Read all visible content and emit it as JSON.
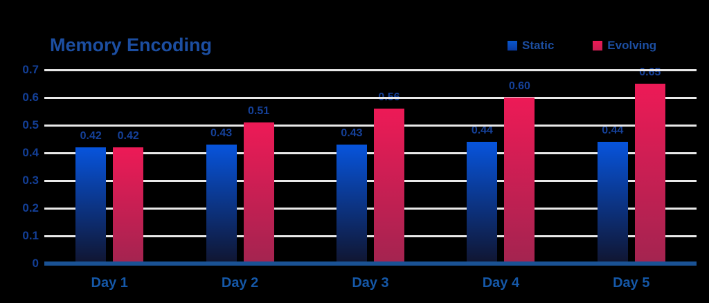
{
  "title": "Memory Encoding",
  "legend": {
    "items": [
      {
        "label": "Static"
      },
      {
        "label": "Evolving"
      }
    ]
  },
  "chart_data": {
    "type": "bar",
    "title": "Memory Encoding",
    "categories": [
      "Day 1",
      "Day 2",
      "Day 3",
      "Day 4",
      "Day 5"
    ],
    "series": [
      {
        "name": "Static",
        "values": [
          0.42,
          0.43,
          0.43,
          0.44,
          0.44
        ],
        "value_labels": [
          "0.42",
          "0.43",
          "0.43",
          "0.44",
          "0.44"
        ],
        "color_top": "#0754DC",
        "color_bottom": "#101530"
      },
      {
        "name": "Evolving",
        "values": [
          0.42,
          0.51,
          0.56,
          0.6,
          0.65
        ],
        "value_labels": [
          "0.42",
          "0.51",
          "0.56",
          "0.60",
          "0.65"
        ],
        "color_top": "#ED1A56",
        "color_bottom": "#A32450"
      }
    ],
    "xlabel": "",
    "ylabel": "",
    "ylim": [
      0,
      0.7
    ],
    "yticks": [
      0,
      0.1,
      0.2,
      0.3,
      0.4,
      0.5,
      0.6,
      0.7
    ],
    "ytick_labels": [
      "0",
      "0.1",
      "0.2",
      "0.3",
      "0.4",
      "0.5",
      "0.6",
      "0.7"
    ],
    "grid": true,
    "legend_position": "top-right"
  },
  "colors": {
    "background": "#000000",
    "title_text": "#1C4EA1",
    "legend_text": "#1C4EA1",
    "ytick_text": "#133F97",
    "xlabel_text": "#1558A8",
    "value_label_text": "#15419A",
    "gridline": "#E9E9E9",
    "axis_line": "#1A5294",
    "static_top": "#0754DC",
    "static_bottom": "#101530",
    "evolving_top": "#ED1A56",
    "evolving_bottom": "#A32450"
  }
}
